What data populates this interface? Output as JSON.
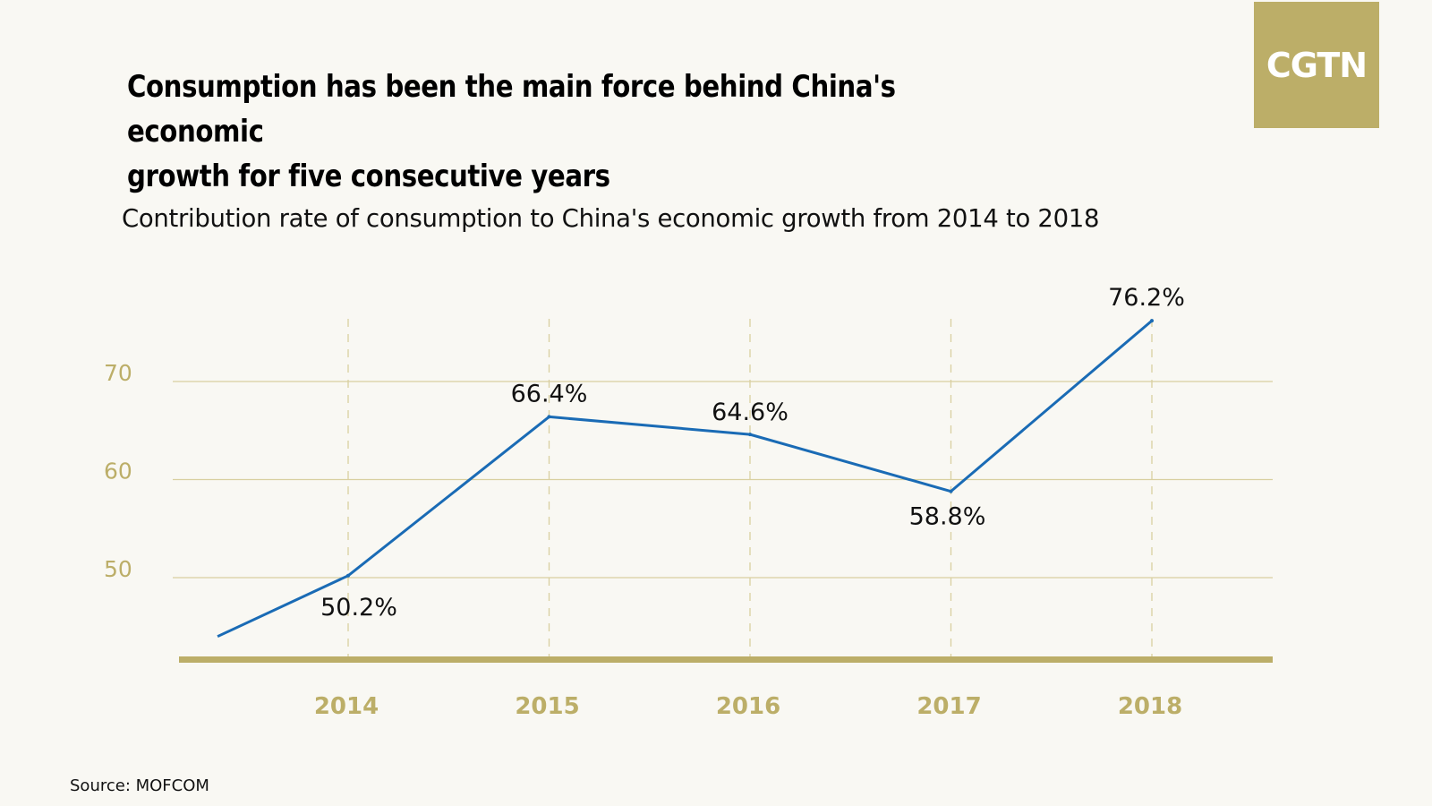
{
  "logo": {
    "text": "CGTN"
  },
  "header": {
    "title_line1": "Consumption has been the main force behind China's economic",
    "title_line2": "growth for five consecutive years"
  },
  "footer": {
    "source": "Source: MOFCOM"
  },
  "colors": {
    "background": "#f9f8f3",
    "accent": "#bcae68",
    "line": "#1a6bb5",
    "grid": "#d9cfa0"
  },
  "chart_data": {
    "type": "line",
    "title": "Contribution rate of consumption to China's economic growth from 2014 to 2018",
    "xlabel": "",
    "ylabel": "",
    "categories": [
      "2014",
      "2015",
      "2016",
      "2017",
      "2018"
    ],
    "series": [
      {
        "values": [
          50.2,
          66.4,
          64.6,
          58.8,
          76.2
        ],
        "labels": [
          "50.2%",
          "66.4%",
          "64.6%",
          "58.8%",
          "76.2%"
        ]
      }
    ],
    "lead_in": {
      "x_before_first": 2013.35,
      "value": 44
    },
    "yticks": [
      50,
      60,
      70
    ],
    "ylim": [
      43,
      73
    ],
    "grid": {
      "horizontal": true,
      "vertical_dashed": true
    },
    "legend": "none"
  }
}
